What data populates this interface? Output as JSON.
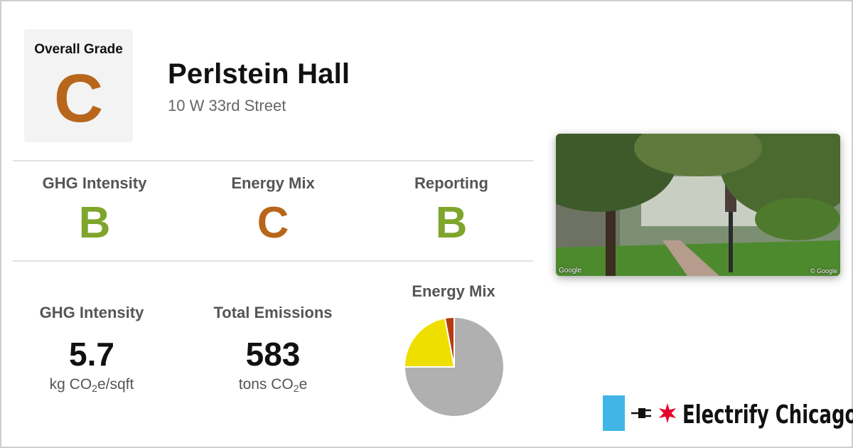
{
  "overall": {
    "label": "Overall Grade",
    "grade": "C"
  },
  "building": {
    "name": "Perlstein Hall",
    "address": "10 W 33rd Street"
  },
  "sub_grades": [
    {
      "label": "GHG Intensity",
      "grade": "B",
      "color": "#7fa52c"
    },
    {
      "label": "Energy Mix",
      "grade": "C",
      "color": "#b8661c"
    },
    {
      "label": "Reporting",
      "grade": "B",
      "color": "#7fa52c"
    }
  ],
  "stats": {
    "ghg_intensity": {
      "label": "GHG Intensity",
      "value": "5.7",
      "unit_prefix": "kg CO",
      "unit_sub": "2",
      "unit_suffix": "e/sqft"
    },
    "total_emissions": {
      "label": "Total Emissions",
      "value": "583",
      "unit_prefix": "tons CO",
      "unit_sub": "2",
      "unit_suffix": "e"
    }
  },
  "energy_mix": {
    "title": "Energy Mix",
    "slices": [
      {
        "name": "grey",
        "fraction": 0.75,
        "color": "#b0b0b0"
      },
      {
        "name": "yellow",
        "fraction": 0.22,
        "color": "#efdf00"
      },
      {
        "name": "red",
        "fraction": 0.03,
        "color": "#b63b10"
      }
    ]
  },
  "photo": {
    "credit_left": "Google",
    "credit_right": "© Google"
  },
  "brand": {
    "name": "Electrify Chicago",
    "accent": "#41b6e6",
    "star_color": "#e4002b"
  }
}
